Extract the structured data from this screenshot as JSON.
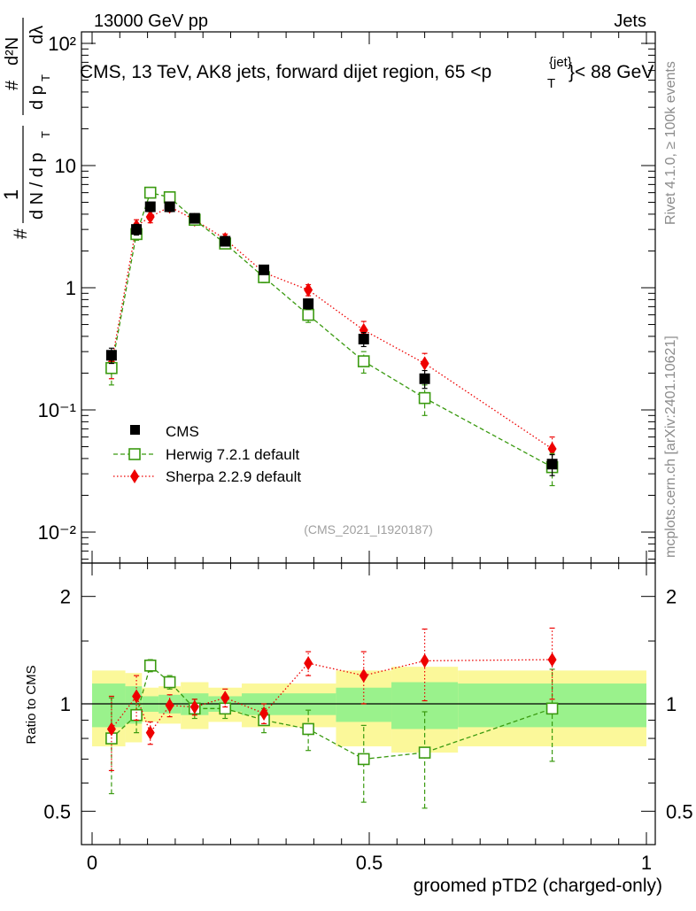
{
  "header": {
    "left": "13000 GeV pp",
    "right": "Jets"
  },
  "main_plot": {
    "title": "CMS, 13 TeV, AK8 jets, forward dijet region, 65 <p",
    "title_sup": "{jet}",
    "title_sub": "T",
    "title_end": "}< 88 GeV",
    "ylabel_parts": {
      "hash": "#",
      "one": "1",
      "dN": "d N / d p",
      "sub_T": "T",
      "frac_hash": "#",
      "d2N": "d²N",
      "dpT": "d p",
      "dlambda": "dλ"
    },
    "reference": "(CMS_2021_I1920187)",
    "side_rivet": "Rivet 4.1.0, ≥ 100k events",
    "side_mcplots": "mcplots.cern.ch [arXiv:2401.10621]"
  },
  "chart_data": [
    {
      "type": "scatter",
      "scale": "log",
      "title": "CMS, 13 TeV, AK8 jets, forward dijet region, 65 < pT jet < 88 GeV",
      "xlabel": "groomed pTD2 (charged-only)",
      "ylabel": "1/N dN/dpT dλ",
      "xlim": [
        0,
        1
      ],
      "ylim": [
        0.006,
        150
      ],
      "ytick_labels": [
        "10⁻²",
        "10⁻¹",
        "1",
        "10",
        "10²"
      ],
      "ytick_values": [
        0.01,
        0.1,
        1,
        10,
        100
      ],
      "legend_position": "middle-left",
      "series": [
        {
          "name": "CMS",
          "color": "#000000",
          "marker": "square-filled",
          "x": [
            0.035,
            0.08,
            0.105,
            0.14,
            0.185,
            0.24,
            0.31,
            0.39,
            0.49,
            0.6,
            0.83
          ],
          "values": [
            0.28,
            3.0,
            4.6,
            4.6,
            3.7,
            2.4,
            1.4,
            0.74,
            0.38,
            0.18,
            0.036
          ],
          "err_low": [
            0.04,
            0.3,
            0.4,
            0.4,
            0.3,
            0.2,
            0.1,
            0.07,
            0.05,
            0.03,
            0.007
          ],
          "err_high": [
            0.04,
            0.3,
            0.4,
            0.4,
            0.3,
            0.2,
            0.1,
            0.07,
            0.05,
            0.03,
            0.007
          ]
        },
        {
          "name": "Herwig 7.2.1 default",
          "color": "#3a9a10",
          "marker": "square-open",
          "line": "dashed",
          "x": [
            0.035,
            0.08,
            0.105,
            0.14,
            0.185,
            0.24,
            0.31,
            0.39,
            0.49,
            0.6,
            0.83
          ],
          "values": [
            0.22,
            2.75,
            6.0,
            5.5,
            3.6,
            2.3,
            1.22,
            0.6,
            0.25,
            0.125,
            0.034
          ],
          "err_low": [
            0.06,
            0.3,
            0.5,
            0.4,
            0.3,
            0.2,
            0.12,
            0.08,
            0.05,
            0.035,
            0.01
          ],
          "err_high": [
            0.06,
            0.3,
            0.5,
            0.4,
            0.3,
            0.2,
            0.12,
            0.08,
            0.05,
            0.035,
            0.01
          ]
        },
        {
          "name": "Sherpa 2.2.9 default",
          "color": "#ee0000",
          "marker": "diamond-filled",
          "line": "dotted",
          "x": [
            0.035,
            0.08,
            0.105,
            0.14,
            0.185,
            0.24,
            0.31,
            0.39,
            0.49,
            0.6,
            0.83
          ],
          "values": [
            0.24,
            3.2,
            3.8,
            4.6,
            3.6,
            2.5,
            1.33,
            0.96,
            0.45,
            0.24,
            0.048
          ],
          "err_low": [
            0.06,
            0.4,
            0.4,
            0.4,
            0.3,
            0.25,
            0.15,
            0.1,
            0.08,
            0.05,
            0.012
          ],
          "err_high": [
            0.06,
            0.4,
            0.4,
            0.4,
            0.3,
            0.25,
            0.15,
            0.1,
            0.08,
            0.05,
            0.012
          ]
        }
      ]
    },
    {
      "type": "scatter",
      "scale": "log",
      "ylabel": "Ratio to CMS",
      "xlabel": "groomed pTD2 (charged-only)",
      "xlim": [
        0,
        1
      ],
      "ylim": [
        0.42,
        2.4
      ],
      "ytick_labels": [
        "0.5",
        "1",
        "2"
      ],
      "ytick_values": [
        0.5,
        1,
        2
      ],
      "xtick_labels": [
        "0",
        "0.5",
        "1"
      ],
      "xtick_values": [
        0,
        0.5,
        1
      ],
      "bands": [
        {
          "x0": 0.0,
          "x1": 0.06,
          "stat": 0.14,
          "tot": 0.24
        },
        {
          "x0": 0.06,
          "x1": 0.09,
          "stat": 0.12,
          "tot": 0.22
        },
        {
          "x0": 0.09,
          "x1": 0.12,
          "stat": 0.05,
          "tot": 0.11
        },
        {
          "x0": 0.12,
          "x1": 0.16,
          "stat": 0.06,
          "tot": 0.12
        },
        {
          "x0": 0.16,
          "x1": 0.21,
          "stat": 0.07,
          "tot": 0.15
        },
        {
          "x0": 0.21,
          "x1": 0.27,
          "stat": 0.05,
          "tot": 0.11
        },
        {
          "x0": 0.27,
          "x1": 0.44,
          "stat": 0.07,
          "tot": 0.14
        },
        {
          "x0": 0.44,
          "x1": 0.54,
          "stat": 0.11,
          "tot": 0.24
        },
        {
          "x0": 0.54,
          "x1": 0.66,
          "stat": 0.15,
          "tot": 0.27
        },
        {
          "x0": 0.66,
          "x1": 1.0,
          "stat": 0.14,
          "tot": 0.24
        }
      ],
      "series": [
        {
          "name": "Herwig 7.2.1 default",
          "color": "#3a9a10",
          "marker": "square-open",
          "line": "dashed",
          "x": [
            0.035,
            0.08,
            0.105,
            0.14,
            0.185,
            0.24,
            0.31,
            0.39,
            0.49,
            0.6,
            0.83
          ],
          "values": [
            0.8,
            0.93,
            1.28,
            1.15,
            0.97,
            0.97,
            0.9,
            0.85,
            0.7,
            0.73,
            0.97
          ],
          "err_low": [
            0.24,
            0.1,
            0.05,
            0.05,
            0.06,
            0.06,
            0.07,
            0.11,
            0.17,
            0.22,
            0.28
          ],
          "err_high": [
            0.24,
            0.1,
            0.05,
            0.05,
            0.06,
            0.06,
            0.07,
            0.11,
            0.17,
            0.22,
            0.28
          ]
        },
        {
          "name": "Sherpa 2.2.9 default",
          "color": "#ee0000",
          "marker": "diamond-filled",
          "line": "dotted",
          "x": [
            0.035,
            0.08,
            0.105,
            0.14,
            0.185,
            0.24,
            0.31,
            0.39,
            0.49,
            0.6,
            0.83
          ],
          "values": [
            0.85,
            1.05,
            0.83,
            0.99,
            0.98,
            1.04,
            0.94,
            1.3,
            1.2,
            1.32,
            1.33
          ],
          "err_low": [
            0.2,
            0.15,
            0.06,
            0.07,
            0.05,
            0.06,
            0.06,
            0.1,
            0.2,
            0.3,
            0.3
          ],
          "err_high": [
            0.2,
            0.15,
            0.06,
            0.07,
            0.05,
            0.06,
            0.06,
            0.1,
            0.2,
            0.3,
            0.3
          ]
        }
      ]
    }
  ],
  "ratio_plot": {
    "ylabel": "Ratio to CMS"
  },
  "xaxis": {
    "label": "groomed pTD2 (charged-only)"
  },
  "colors": {
    "band_stat": "#9af28c",
    "band_tot": "#fbf89a"
  }
}
